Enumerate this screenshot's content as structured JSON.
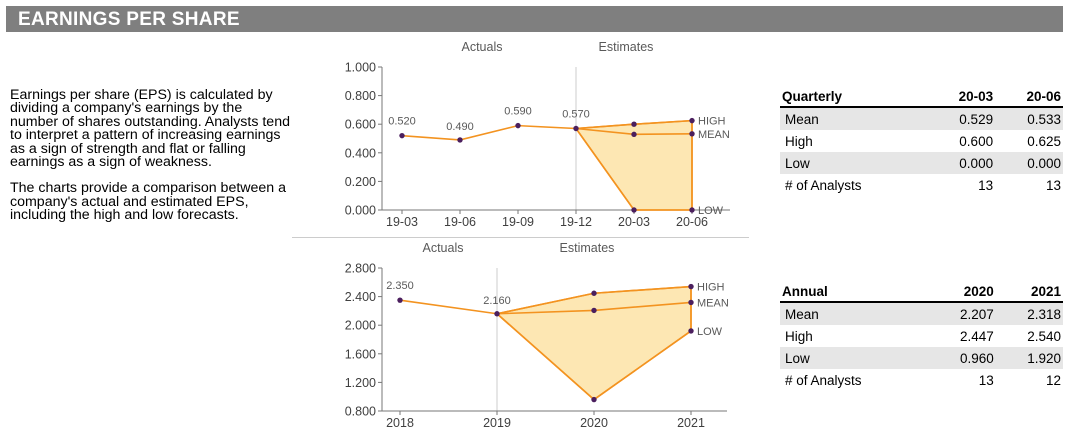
{
  "header": {
    "title": "EARNINGS PER SHARE"
  },
  "description": {
    "p1": "Earnings per share (EPS) is calculated by dividing a company's earnings by the number of shares outstanding. Analysts tend to interpret a pattern of increasing earnings as a sign of strength and flat or falling earnings as a sign of weakness.",
    "p2": "The charts provide a comparison between a company's actual and estimated EPS, including the high and low forecasts."
  },
  "chart_data": [
    {
      "type": "line",
      "section_labels": [
        "Actuals",
        "Estimates"
      ],
      "categories": [
        "19-03",
        "19-06",
        "19-09",
        "19-12",
        "20-03",
        "20-06"
      ],
      "ylim": [
        0,
        1.0
      ],
      "yticks": [
        "0.000",
        "0.200",
        "0.400",
        "0.600",
        "0.800",
        "1.000"
      ],
      "actuals": [
        0.52,
        0.49,
        0.59,
        0.57
      ],
      "actual_labels": [
        "0.520",
        "0.490",
        "0.590",
        "0.570"
      ],
      "series": [
        {
          "name": "HIGH",
          "values": [
            null,
            null,
            null,
            0.57,
            0.6,
            0.625
          ]
        },
        {
          "name": "MEAN",
          "values": [
            null,
            null,
            null,
            0.57,
            0.529,
            0.533
          ]
        },
        {
          "name": "LOW",
          "values": [
            null,
            null,
            null,
            0.57,
            0.0,
            0.0
          ]
        }
      ],
      "colors": {
        "line": "#f39320",
        "fill": "#fde7b3",
        "point": "#4b1f5e"
      }
    },
    {
      "type": "line",
      "section_labels": [
        "Actuals",
        "Estimates"
      ],
      "categories": [
        "2018",
        "2019",
        "2020",
        "2021"
      ],
      "ylim": [
        0.8,
        2.8
      ],
      "yticks": [
        "0.800",
        "1.200",
        "1.600",
        "2.000",
        "2.400",
        "2.800"
      ],
      "actuals": [
        2.35,
        2.16
      ],
      "actual_labels": [
        "2.350",
        "2.160"
      ],
      "series": [
        {
          "name": "HIGH",
          "values": [
            null,
            2.16,
            2.447,
            2.54
          ]
        },
        {
          "name": "MEAN",
          "values": [
            null,
            2.16,
            2.207,
            2.318
          ]
        },
        {
          "name": "LOW",
          "values": [
            null,
            2.16,
            0.96,
            1.92
          ]
        }
      ],
      "colors": {
        "line": "#f39320",
        "fill": "#fde7b3",
        "point": "#4b1f5e"
      }
    }
  ],
  "tables": {
    "quarterly": {
      "header": [
        "Quarterly",
        "20-03",
        "20-06"
      ],
      "rows": [
        [
          "Mean",
          "0.529",
          "0.533"
        ],
        [
          "High",
          "0.600",
          "0.625"
        ],
        [
          "Low",
          "0.000",
          "0.000"
        ],
        [
          "# of Analysts",
          "13",
          "13"
        ]
      ]
    },
    "annual": {
      "header": [
        "Annual",
        "2020",
        "2021"
      ],
      "rows": [
        [
          "Mean",
          "2.207",
          "2.318"
        ],
        [
          "High",
          "2.447",
          "2.540"
        ],
        [
          "Low",
          "0.960",
          "1.920"
        ],
        [
          "# of Analysts",
          "13",
          "12"
        ]
      ]
    }
  }
}
